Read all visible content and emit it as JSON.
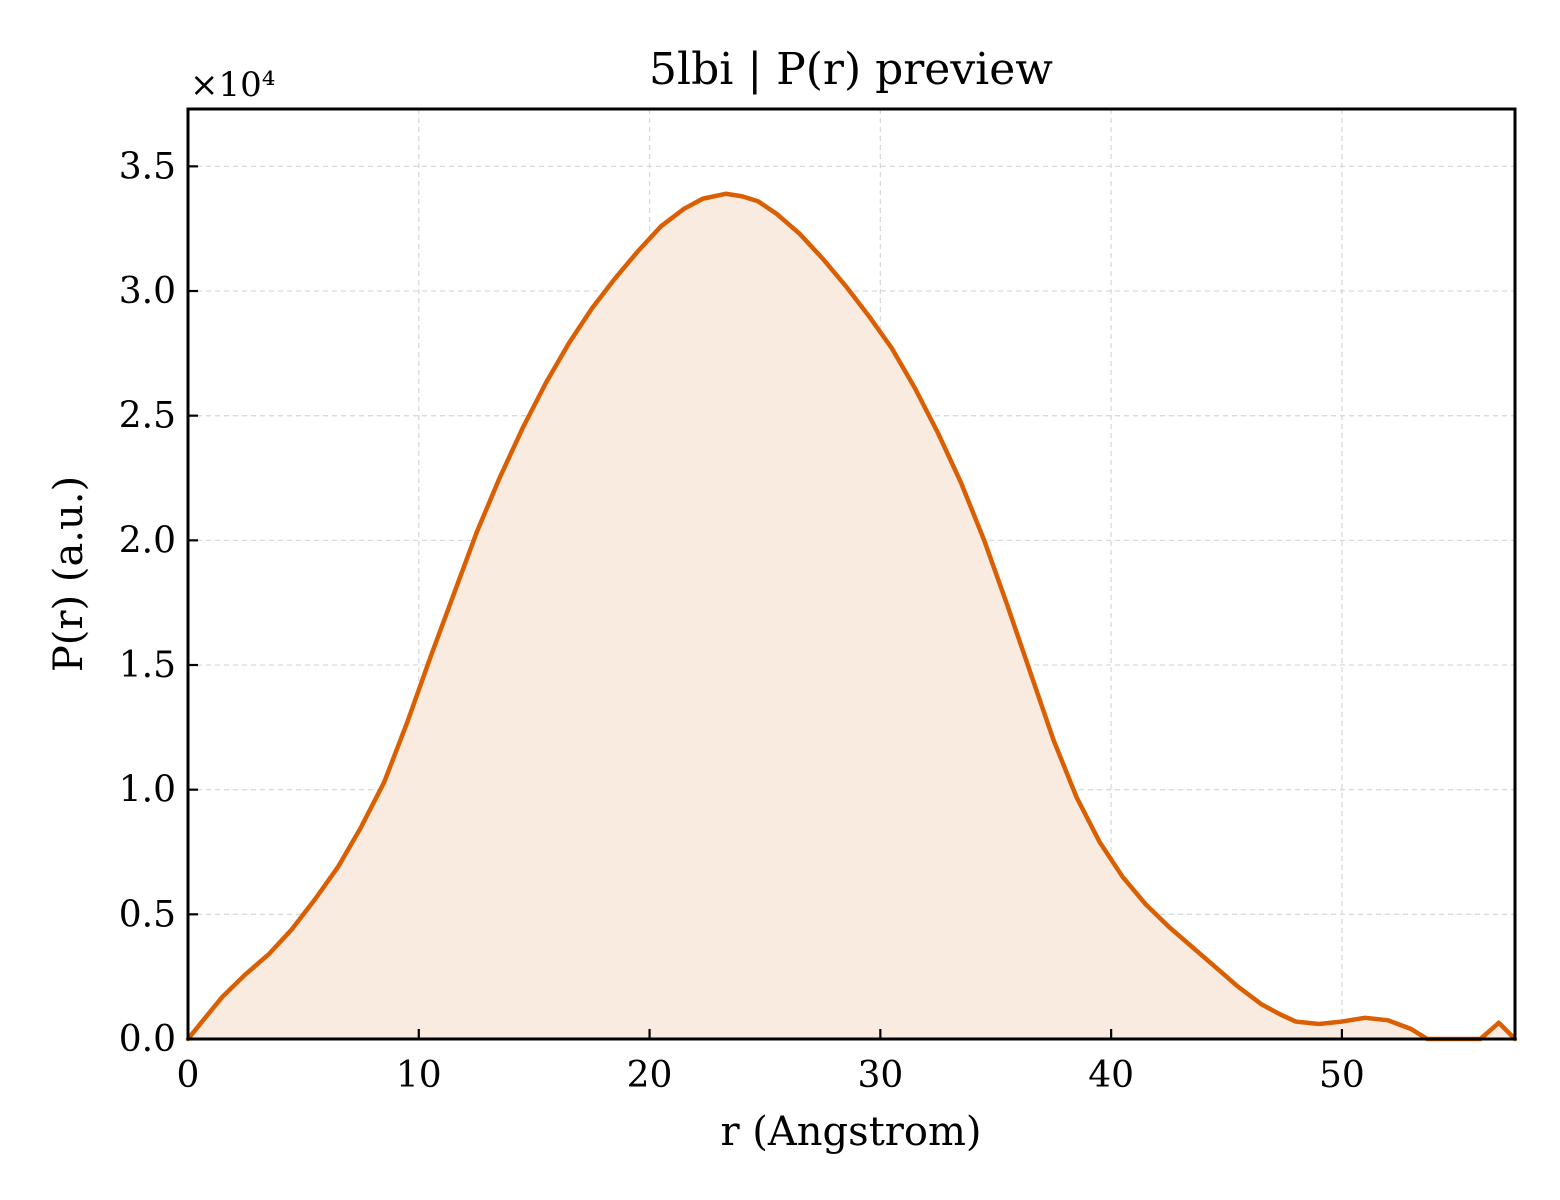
{
  "chart_data": {
    "type": "area",
    "title": "5lbi | P(r) preview",
    "xlabel": "r (Angstrom)",
    "ylabel": "P(r) (a.u.)",
    "y_offset_text": "×10⁴",
    "y_scale_factor": 10000,
    "xlim": [
      0,
      57.5
    ],
    "ylim": [
      0,
      37300
    ],
    "x_ticks": [
      0,
      10,
      20,
      30,
      40,
      50
    ],
    "x_tick_labels": [
      "0",
      "10",
      "20",
      "30",
      "40",
      "50"
    ],
    "y_ticks": [
      0,
      5000,
      10000,
      15000,
      20000,
      25000,
      30000,
      35000
    ],
    "y_tick_labels": [
      "0.0",
      "0.5",
      "1.0",
      "1.5",
      "2.0",
      "2.5",
      "3.0",
      "3.5"
    ],
    "grid": true,
    "line_color": "#d95f02",
    "fill_color": "#f9ebe0",
    "series": [
      {
        "x": [
          0,
          0.7,
          1.5,
          2.5,
          3.5,
          4.5,
          5.5,
          6.5,
          7.5,
          8.5,
          9.5,
          10.5,
          11.5,
          12.5,
          13.5,
          14.5,
          15.5,
          16.5,
          17.5,
          18.5,
          19.5,
          20.5,
          21.5,
          22.3,
          23.3,
          24.0,
          24.7,
          25.5,
          26.5,
          27.5,
          28.5,
          29.5,
          30.5,
          31.5,
          32.5,
          33.5,
          34.5,
          35.5,
          36.5,
          37.5,
          38.5,
          39.5,
          40.5,
          41.5,
          42.5,
          43.5,
          44.5,
          45.5,
          46.5,
          47.3,
          48.0,
          49.0,
          50.0,
          51.0,
          52.0,
          53.0,
          53.7,
          56.0,
          56.8,
          57.5
        ],
        "y": [
          0,
          800,
          1700,
          2600,
          3400,
          4400,
          5600,
          6900,
          8500,
          10300,
          12700,
          15300,
          17800,
          20300,
          22500,
          24500,
          26300,
          27900,
          29300,
          30500,
          31600,
          32600,
          33300,
          33700,
          33900,
          33800,
          33600,
          33100,
          32300,
          31300,
          30200,
          29000,
          27700,
          26100,
          24300,
          22300,
          20000,
          17400,
          14700,
          12000,
          9700,
          7900,
          6500,
          5400,
          4500,
          3700,
          2900,
          2100,
          1400,
          1000,
          700,
          600,
          700,
          850,
          750,
          400,
          0,
          0,
          650,
          0
        ]
      }
    ]
  }
}
